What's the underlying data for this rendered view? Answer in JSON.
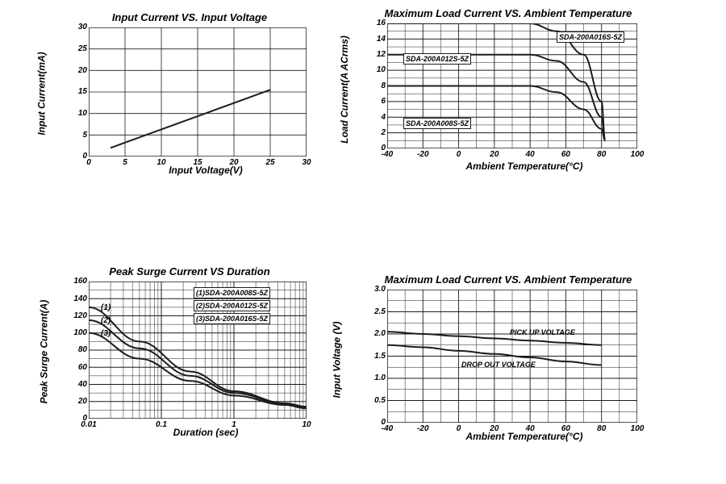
{
  "colors": {
    "stroke": "#1c1c1c",
    "bg": "#ffffff",
    "grid": "#1c1c1c"
  },
  "chart1": {
    "type": "line",
    "title": "Input Current VS. Input Voltage",
    "xlabel": "Input  Voltage(V)",
    "ylabel": "Input Current(mA)",
    "xlim": [
      0,
      30
    ],
    "xtick_step": 5,
    "ylim": [
      0,
      30
    ],
    "ytick_step": 5,
    "xticks": [
      0,
      5,
      10,
      15,
      20,
      25,
      30
    ],
    "yticks": [
      0,
      5,
      10,
      15,
      20,
      25,
      30
    ],
    "line_width": 2,
    "series": {
      "points": [
        [
          3,
          2
        ],
        [
          25,
          15.5
        ]
      ]
    }
  },
  "chart2": {
    "type": "line",
    "title": "Maximum Load Current VS. Ambient  Temperature",
    "xlabel": "Ambient Temperature(°C)",
    "ylabel": "Load Current(A ACrms)",
    "xlim": [
      -40,
      100
    ],
    "xtick_step": 20,
    "ylim": [
      0,
      16
    ],
    "ytick_step": 2,
    "xticks": [
      -40,
      -20,
      0,
      20,
      40,
      60,
      80,
      100
    ],
    "yticks": [
      0,
      2,
      4,
      6,
      8,
      10,
      12,
      14,
      16
    ],
    "line_width": 2,
    "series": [
      {
        "label": "SDA-200A016S-5Z",
        "points": [
          [
            -40,
            16
          ],
          [
            40,
            16
          ],
          [
            55,
            15
          ],
          [
            70,
            12
          ],
          [
            80,
            6
          ],
          [
            82,
            1
          ]
        ]
      },
      {
        "label": "SDA-200A012S-5Z",
        "points": [
          [
            -40,
            12
          ],
          [
            40,
            12
          ],
          [
            55,
            11.2
          ],
          [
            70,
            8.5
          ],
          [
            80,
            4
          ],
          [
            82,
            1
          ]
        ]
      },
      {
        "label": "SDA-200A008S-5Z",
        "points": [
          [
            -40,
            8
          ],
          [
            40,
            8
          ],
          [
            55,
            7.2
          ],
          [
            70,
            5
          ],
          [
            80,
            2.5
          ],
          [
            82,
            1
          ]
        ]
      }
    ]
  },
  "chart3": {
    "type": "line-logx",
    "title": "Peak Surge Current VS Duration",
    "xlabel": "Duration (sec)",
    "ylabel": "Peak Surge Current(A)",
    "xlim_log": [
      -2,
      1
    ],
    "ylim": [
      0,
      160
    ],
    "ytick_step": 20,
    "xtick_labels": [
      "0.01",
      "0.1",
      "1",
      "10"
    ],
    "xtick_log_positions": [
      -2,
      -1,
      0,
      1
    ],
    "yticks": [
      0,
      20,
      40,
      60,
      80,
      100,
      120,
      140,
      160
    ],
    "line_width": 2,
    "series": [
      {
        "num": "(1)",
        "label": "(1)SDA-200A008S-5Z",
        "points_log": [
          [
            -2,
            130
          ],
          [
            -1.3,
            90
          ],
          [
            -0.6,
            55
          ],
          [
            0,
            32
          ],
          [
            0.7,
            18
          ],
          [
            1,
            14
          ]
        ]
      },
      {
        "num": "(2)",
        "label": "(2)SDA-200A012S-5Z",
        "points_log": [
          [
            -2,
            115
          ],
          [
            -1.3,
            82
          ],
          [
            -0.6,
            50
          ],
          [
            0,
            30
          ],
          [
            0.7,
            17
          ],
          [
            1,
            13
          ]
        ]
      },
      {
        "num": "(3)",
        "label": "(3)SDA-200A016S-5Z",
        "points_log": [
          [
            -2,
            100
          ],
          [
            -1.3,
            70
          ],
          [
            -0.6,
            44
          ],
          [
            0,
            27
          ],
          [
            0.7,
            16
          ],
          [
            1,
            12
          ]
        ]
      }
    ]
  },
  "chart4": {
    "type": "line",
    "title": "Maximum Load Current VS. Ambient  Temperature",
    "xlabel": "Ambient Temperature(°C)",
    "ylabel": "Input Voltage (V)",
    "xlim": [
      -40,
      100
    ],
    "xtick_step": 20,
    "ylim": [
      0,
      3.0
    ],
    "ytick_step": 0.5,
    "xticks": [
      -40,
      -20,
      0,
      20,
      40,
      60,
      80,
      100
    ],
    "yticks": [
      "0",
      "0.5",
      "1.0",
      "1.5",
      "2.0",
      "2.5",
      "3.0"
    ],
    "line_width": 2,
    "series": [
      {
        "label": "PICK UP VOLTAGE",
        "points": [
          [
            -40,
            2.05
          ],
          [
            -20,
            2.0
          ],
          [
            0,
            1.95
          ],
          [
            20,
            1.9
          ],
          [
            40,
            1.85
          ],
          [
            60,
            1.8
          ],
          [
            80,
            1.75
          ]
        ]
      },
      {
        "label": "DROP OUT VOLTAGE",
        "points": [
          [
            -40,
            1.75
          ],
          [
            -20,
            1.7
          ],
          [
            0,
            1.62
          ],
          [
            20,
            1.55
          ],
          [
            40,
            1.47
          ],
          [
            60,
            1.38
          ],
          [
            80,
            1.3
          ]
        ]
      }
    ]
  }
}
